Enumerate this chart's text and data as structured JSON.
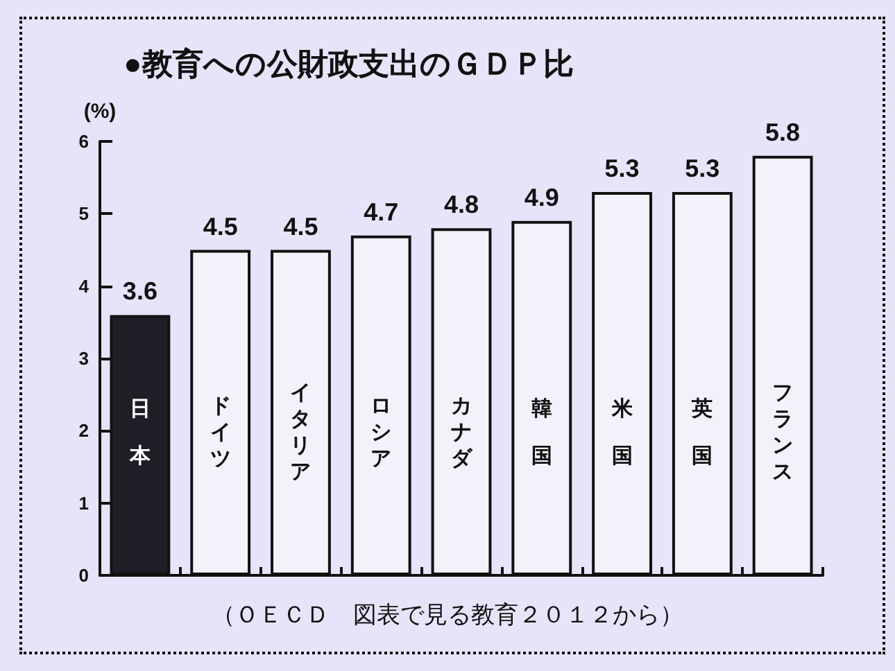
{
  "chart_data": {
    "type": "bar",
    "title": "●教育への公財政支出のＧＤＰ比",
    "ylabel": "(%)",
    "categories": [
      "日本",
      "ドイツ",
      "イタリア",
      "ロシア",
      "カナダ",
      "韓国",
      "米国",
      "英国",
      "フランス"
    ],
    "values": [
      3.6,
      4.5,
      4.5,
      4.7,
      4.8,
      4.9,
      5.3,
      5.3,
      5.8
    ],
    "colors": [
      "#1e1e26",
      "#f3f2fb",
      "#f3f2fb",
      "#f3f2fb",
      "#f3f2fb",
      "#f3f2fb",
      "#f3f2fb",
      "#f3f2fb",
      "#f3f2fb"
    ],
    "ylim": [
      0,
      6
    ],
    "yticks": [
      0,
      1,
      2,
      3,
      4,
      5,
      6
    ],
    "grid": false,
    "data_labels": true,
    "annotations": [
      "（ＯＥＣＤ　図表で見る教育２０１２から）"
    ]
  }
}
